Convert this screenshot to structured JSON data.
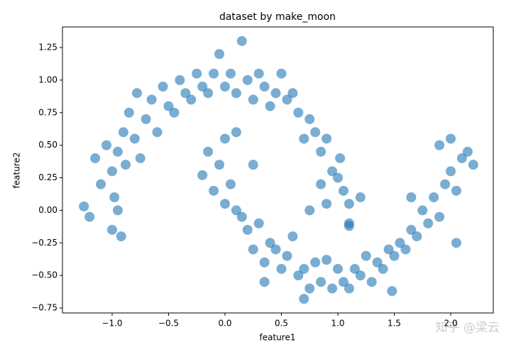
{
  "chart_data": {
    "type": "scatter",
    "title": "dataset by make_moon",
    "x_label": "feature1",
    "y_label": "feature2",
    "watermark": "知乎 @梁云",
    "color": "#1f77b4",
    "x": [
      -1.25,
      -1.2,
      -1.15,
      -1.1,
      -1.05,
      -1.0,
      -0.98,
      -0.95,
      -0.92,
      -0.9,
      -0.88,
      -0.85,
      -0.8,
      -0.78,
      -0.75,
      -0.7,
      -0.65,
      -0.6,
      -0.55,
      -0.5,
      -0.45,
      -0.4,
      -0.35,
      -0.3,
      -0.25,
      -0.2,
      -0.15,
      -0.1,
      -0.05,
      0.0,
      0.05,
      0.1,
      0.15,
      0.2,
      0.25,
      0.3,
      0.35,
      0.4,
      0.45,
      0.5,
      0.55,
      0.6,
      0.65,
      0.7,
      0.75,
      0.8,
      0.85,
      0.9,
      0.95,
      1.0,
      1.02,
      1.05,
      0.85,
      0.9,
      1.1,
      1.2,
      0.75,
      1.1,
      -1.0,
      -0.95,
      -0.2,
      -0.15,
      -0.1,
      -0.05,
      0.0,
      0.0,
      0.05,
      0.1,
      0.1,
      0.15,
      0.2,
      0.25,
      0.25,
      0.3,
      0.35,
      0.4,
      0.45,
      0.5,
      0.55,
      0.6,
      0.65,
      0.7,
      0.75,
      0.8,
      0.85,
      0.9,
      0.95,
      1.0,
      1.05,
      1.1,
      1.15,
      1.2,
      1.25,
      1.3,
      1.35,
      1.4,
      1.45,
      1.5,
      1.48,
      1.55,
      1.6,
      1.65,
      1.7,
      1.75,
      1.8,
      1.85,
      1.9,
      1.95,
      2.0,
      2.05,
      2.1,
      2.15,
      2.2,
      1.9,
      2.0,
      2.05,
      1.65,
      0.7,
      1.1,
      0.35
    ],
    "values": [
      0.03,
      -0.05,
      0.4,
      0.2,
      0.5,
      0.3,
      0.1,
      0.45,
      -0.2,
      0.6,
      0.35,
      0.75,
      0.55,
      0.9,
      0.4,
      0.7,
      0.85,
      0.6,
      0.95,
      0.8,
      0.75,
      1.0,
      0.9,
      0.85,
      1.05,
      0.95,
      0.9,
      1.05,
      1.2,
      0.95,
      1.05,
      0.9,
      1.3,
      1.0,
      0.85,
      1.05,
      0.95,
      0.8,
      0.9,
      1.05,
      0.85,
      0.9,
      0.75,
      0.55,
      0.7,
      0.6,
      0.45,
      0.55,
      0.3,
      0.25,
      0.4,
      0.15,
      0.2,
      0.05,
      0.05,
      0.1,
      0.0,
      -0.1,
      -0.15,
      0.0,
      0.27,
      0.45,
      0.15,
      0.35,
      0.55,
      0.05,
      0.2,
      0.0,
      0.6,
      -0.05,
      -0.15,
      0.35,
      -0.3,
      -0.1,
      -0.4,
      -0.25,
      -0.3,
      -0.45,
      -0.35,
      -0.2,
      -0.5,
      -0.45,
      -0.6,
      -0.4,
      -0.55,
      -0.38,
      -0.6,
      -0.45,
      -0.55,
      -0.6,
      -0.45,
      -0.5,
      -0.35,
      -0.55,
      -0.4,
      -0.45,
      -0.3,
      -0.35,
      -0.62,
      -0.25,
      -0.3,
      -0.15,
      -0.2,
      0.0,
      -0.1,
      0.1,
      -0.05,
      0.2,
      0.3,
      0.15,
      0.4,
      0.45,
      0.35,
      0.5,
      0.55,
      -0.25,
      0.1,
      -0.68,
      -0.12,
      -0.55
    ],
    "xlim": [
      -1.44,
      2.377
    ],
    "ylim": [
      -0.788,
      1.408
    ],
    "xticks": [
      {
        "value": -1,
        "label": "−1.0"
      },
      {
        "value": -0.5,
        "label": "−0.5"
      },
      {
        "value": 0,
        "label": "0.0"
      },
      {
        "value": 0.5,
        "label": "0.5"
      },
      {
        "value": 1,
        "label": "1.0"
      },
      {
        "value": 1.5,
        "label": "1.5"
      },
      {
        "value": 2,
        "label": "2.0"
      }
    ],
    "yticks": [
      {
        "value": -0.75,
        "label": "−0.75"
      },
      {
        "value": -0.5,
        "label": "−0.50"
      },
      {
        "value": -0.25,
        "label": "−0.25"
      },
      {
        "value": 0,
        "label": "0.00"
      },
      {
        "value": 0.25,
        "label": "0.25"
      },
      {
        "value": 0.5,
        "label": "0.50"
      },
      {
        "value": 0.75,
        "label": "0.75"
      },
      {
        "value": 1,
        "label": "1.00"
      },
      {
        "value": 1.25,
        "label": "1.25"
      }
    ]
  }
}
